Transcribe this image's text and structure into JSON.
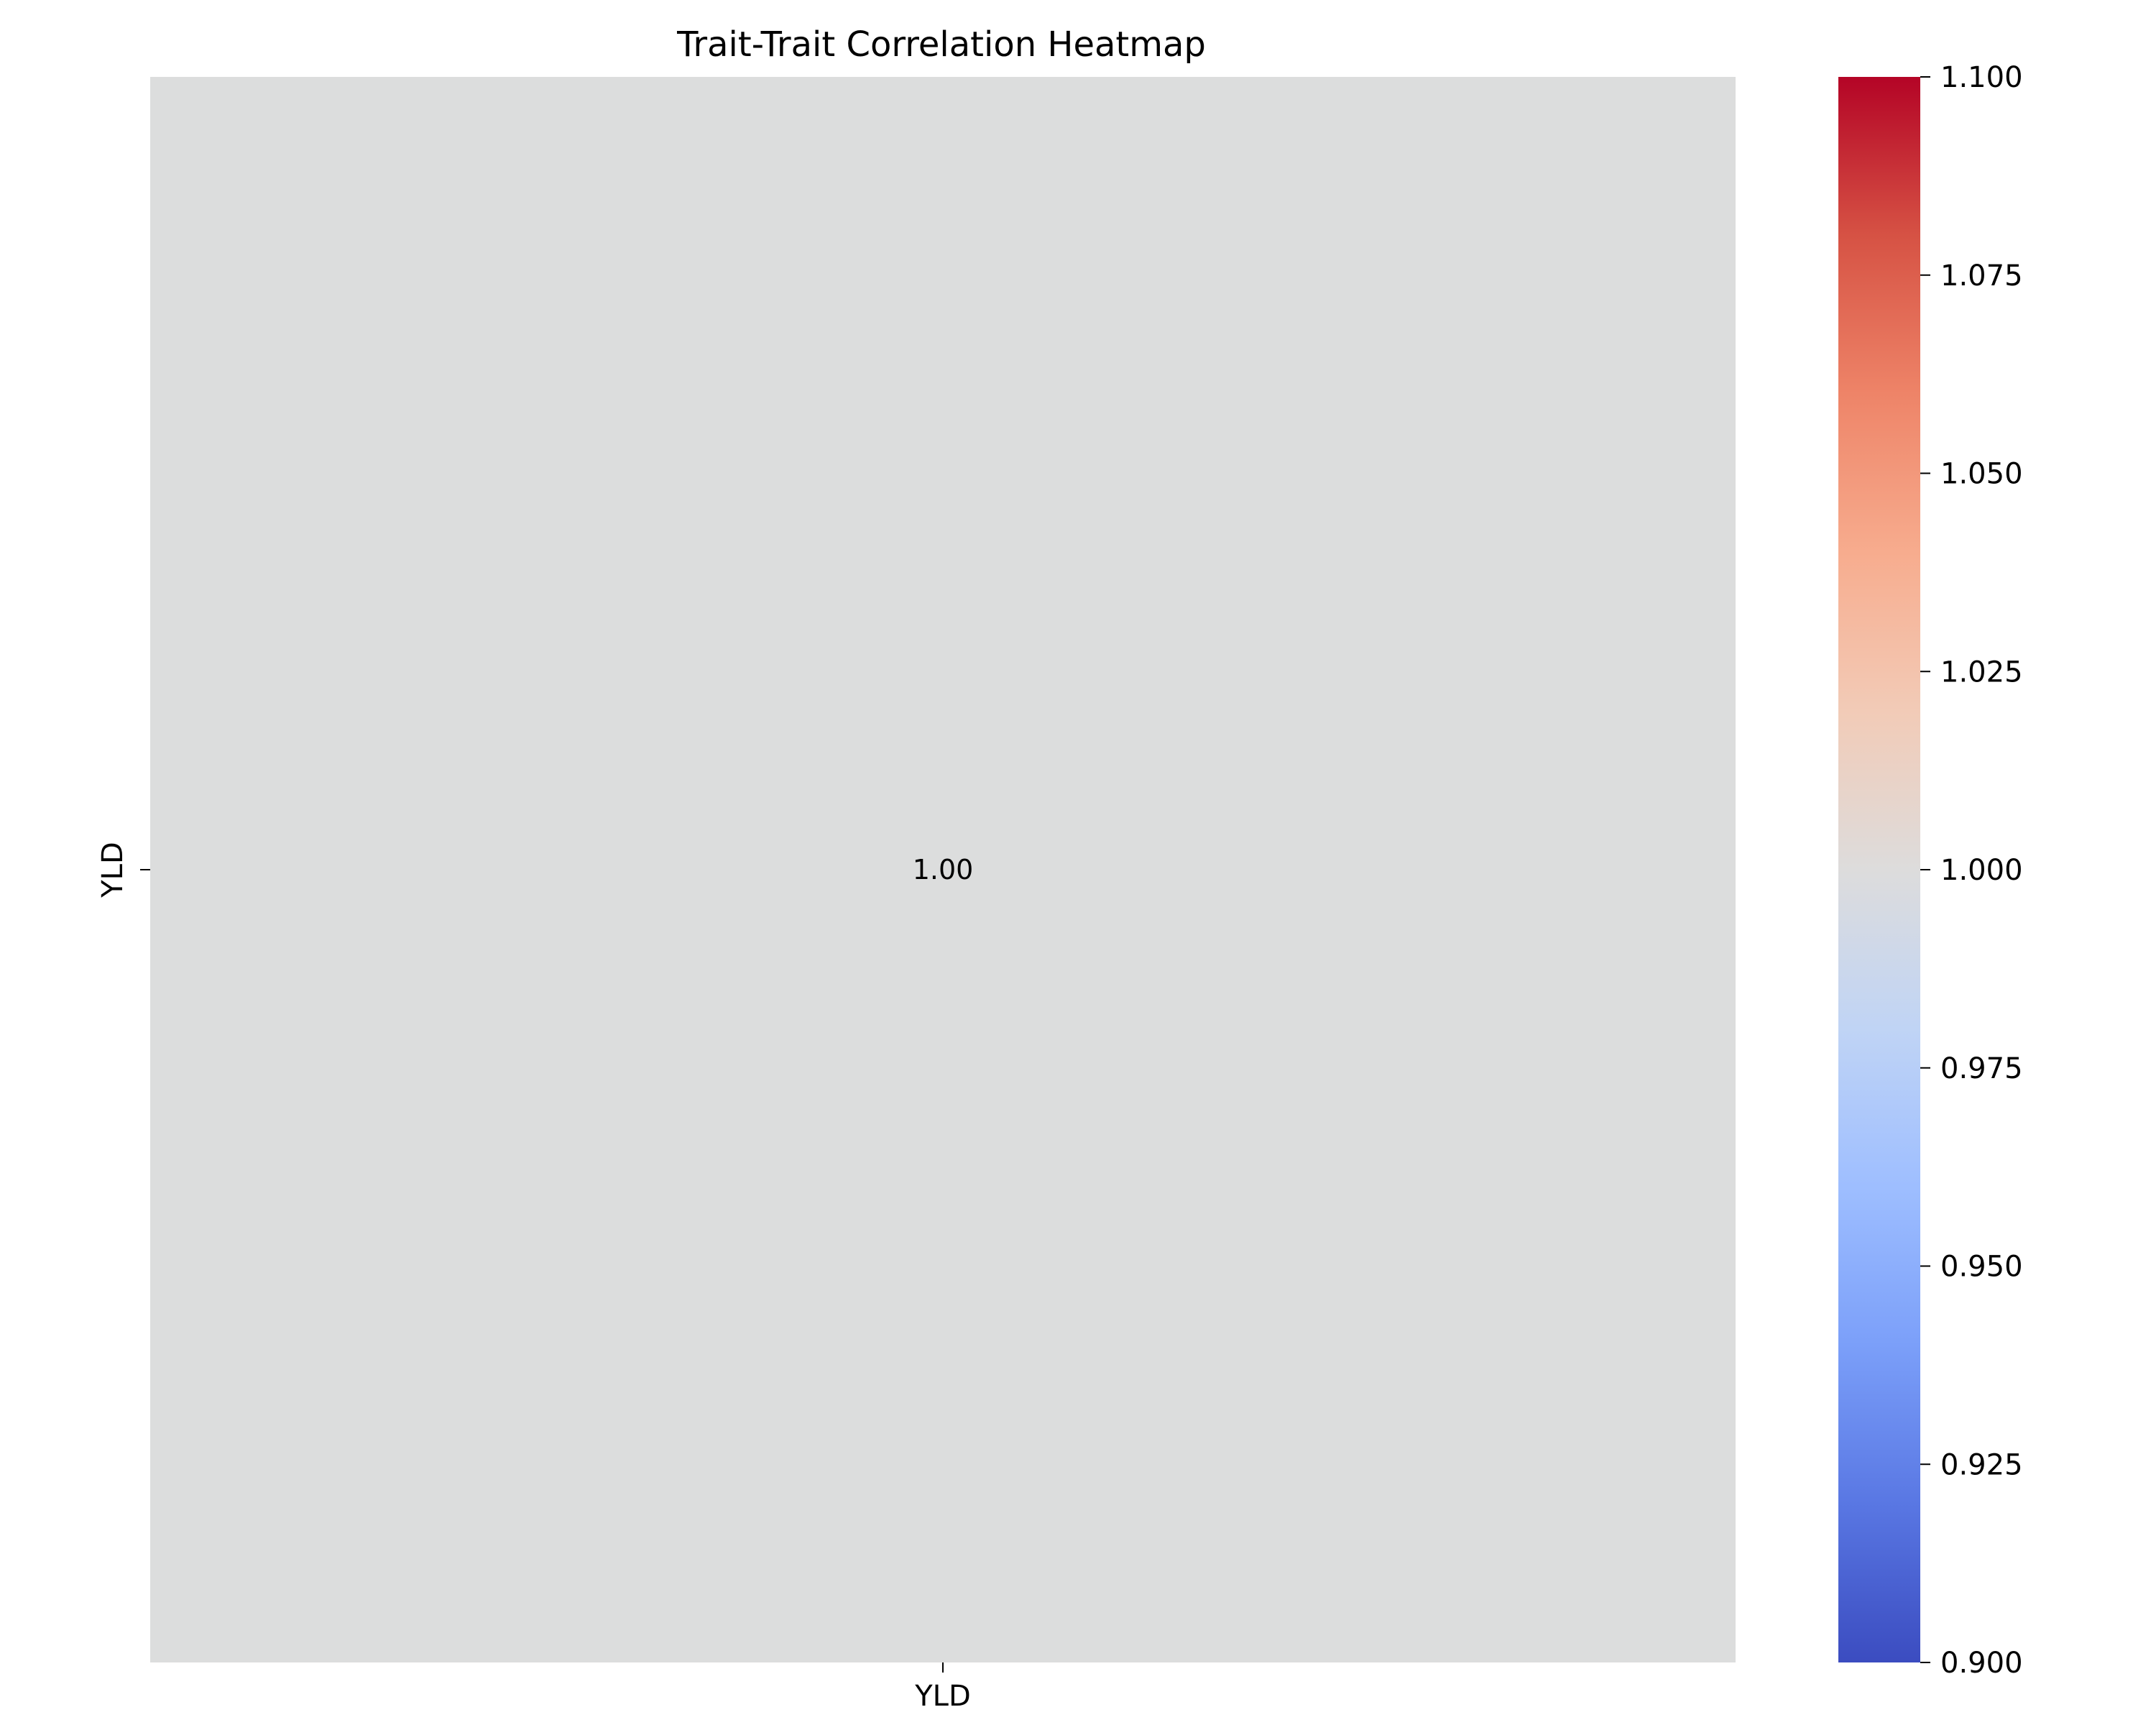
{
  "chart_data": {
    "type": "heatmap",
    "title": "Trait-Trait Correlation Heatmap",
    "x_labels": [
      "YLD"
    ],
    "y_labels": [
      "YLD"
    ],
    "values": [
      [
        1.0
      ]
    ],
    "annotations": [
      [
        "1.00"
      ]
    ],
    "colormap": "coolwarm",
    "colorbar": {
      "range": [
        0.9,
        1.1
      ],
      "ticks": [
        0.9,
        0.925,
        0.95,
        0.975,
        1.0,
        1.025,
        1.05,
        1.075,
        1.1
      ],
      "tick_labels": [
        "0.900",
        "0.925",
        "0.950",
        "0.975",
        "1.000",
        "1.025",
        "1.050",
        "1.075",
        "1.100"
      ],
      "colors": [
        "#3b4cc0",
        "#5977e3",
        "#7b9ff9",
        "#9ebeff",
        "#c0d4f5",
        "#dddcdc",
        "#f2cbb7",
        "#f7ac8e",
        "#ee8468",
        "#d65244",
        "#b40426"
      ]
    },
    "cell_color": "#dcdddd"
  }
}
